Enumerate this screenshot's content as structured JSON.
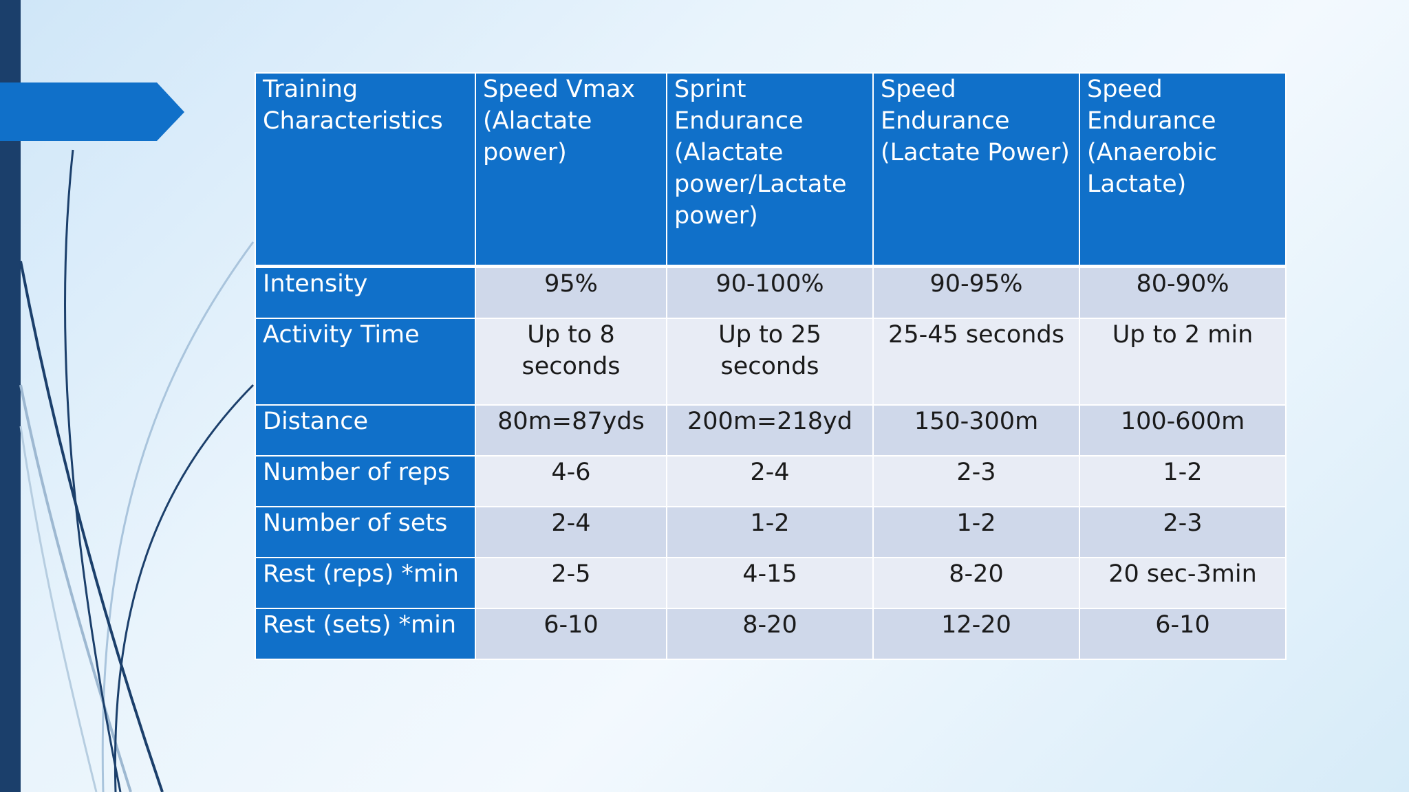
{
  "table": {
    "header": [
      "Training Characteristics",
      "Speed Vmax (Alactate power)",
      "Sprint Endurance (Alactate power/Lactate power)",
      "Speed Endurance (Lactate Power)",
      "Speed Endurance (Anaerobic Lactate)"
    ],
    "rows": [
      {
        "label": "Intensity",
        "cells": [
          "95%",
          "90-100%",
          "90-95%",
          "80-90%"
        ]
      },
      {
        "label": "Activity Time",
        "cells": [
          "Up to 8 seconds",
          "Up to 25 seconds",
          "25-45 seconds",
          "Up to 2 min"
        ]
      },
      {
        "label": "Distance",
        "cells": [
          "80m=87yds",
          "200m=218yd",
          "150-300m",
          "100-600m"
        ]
      },
      {
        "label": "Number of reps",
        "cells": [
          "4-6",
          "2-4",
          "2-3",
          "1-2"
        ]
      },
      {
        "label": "Number of sets",
        "cells": [
          "2-4",
          "1-2",
          "1-2",
          "2-3"
        ]
      },
      {
        "label": "Rest (reps) *min",
        "cells": [
          "2-5",
          "4-15",
          "8-20",
          "20 sec-3min"
        ]
      },
      {
        "label": "Rest (sets) *min",
        "cells": [
          "6-10",
          "8-20",
          "12-20",
          "6-10"
        ]
      }
    ]
  },
  "colors": {
    "header_blue": "#1070c9",
    "band_row": "#cfd8ea",
    "light_row": "#e8ecf5",
    "sidebar_navy": "#1b3f6b"
  }
}
